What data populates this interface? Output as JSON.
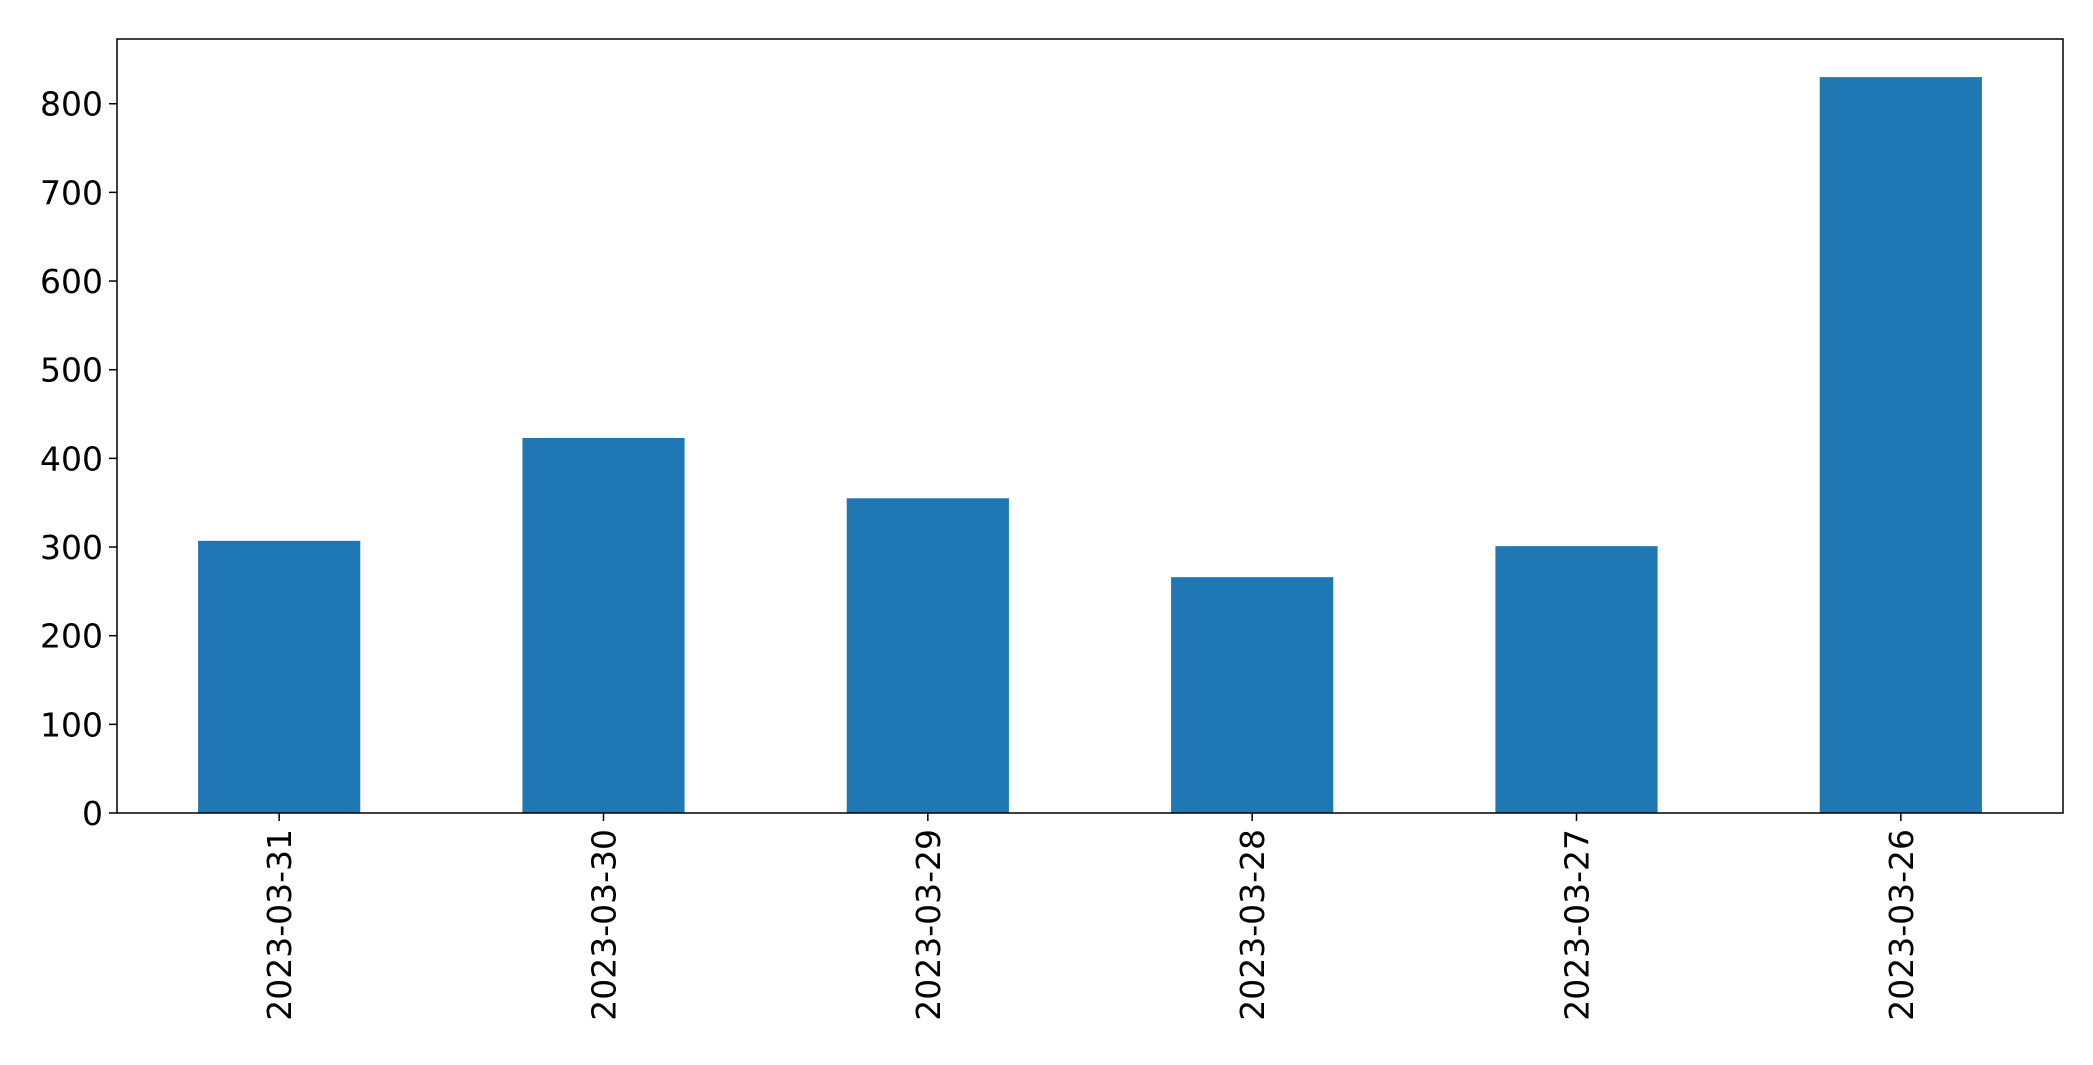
{
  "chart_data": {
    "type": "bar",
    "title": "",
    "xlabel": "",
    "ylabel": "",
    "categories": [
      "2023-03-31",
      "2023-03-30",
      "2023-03-29",
      "2023-03-28",
      "2023-03-27",
      "2023-03-26"
    ],
    "values": [
      307,
      423,
      355,
      266,
      301,
      830
    ],
    "ylim": [
      0,
      873
    ],
    "yticks": [
      0,
      100,
      200,
      300,
      400,
      500,
      600,
      700,
      800
    ],
    "ytick_labels": [
      "0",
      "100",
      "200",
      "300",
      "400",
      "500",
      "600",
      "700",
      "800"
    ],
    "grid": false,
    "legend": "none",
    "bar_color": "#1f77b4"
  }
}
